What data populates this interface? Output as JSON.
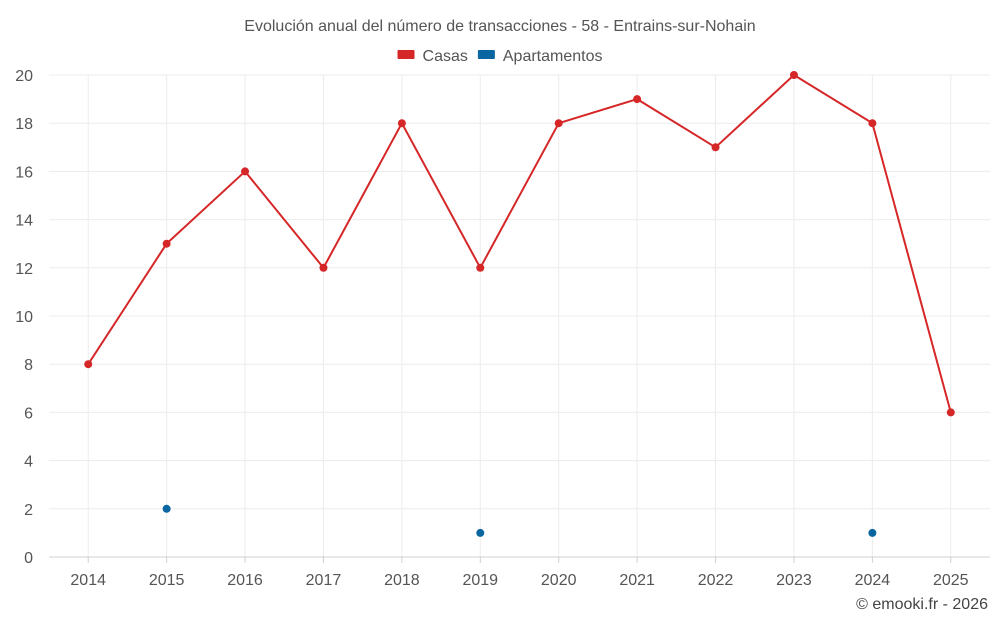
{
  "chart_data": {
    "type": "line",
    "title": "Evolución anual del número de transacciones - 58 - Entrains-sur-Nohain",
    "categories": [
      "2014",
      "2015",
      "2016",
      "2017",
      "2018",
      "2019",
      "2020",
      "2021",
      "2022",
      "2023",
      "2024",
      "2025"
    ],
    "ylim": [
      0,
      20
    ],
    "yticks": [
      0,
      2,
      4,
      6,
      8,
      10,
      12,
      14,
      16,
      18,
      20
    ],
    "grid": true,
    "legend_position": "top",
    "series": [
      {
        "name": "Casas",
        "color": "#d62728",
        "values": [
          8,
          13,
          16,
          12,
          18,
          12,
          18,
          19,
          17,
          20,
          18,
          6
        ]
      },
      {
        "name": "Apartamentos",
        "color": "#0a66a0",
        "values": [
          null,
          2,
          null,
          null,
          null,
          1,
          null,
          null,
          null,
          null,
          1,
          null
        ]
      }
    ]
  },
  "credit": "© emooki.fr - 2026"
}
